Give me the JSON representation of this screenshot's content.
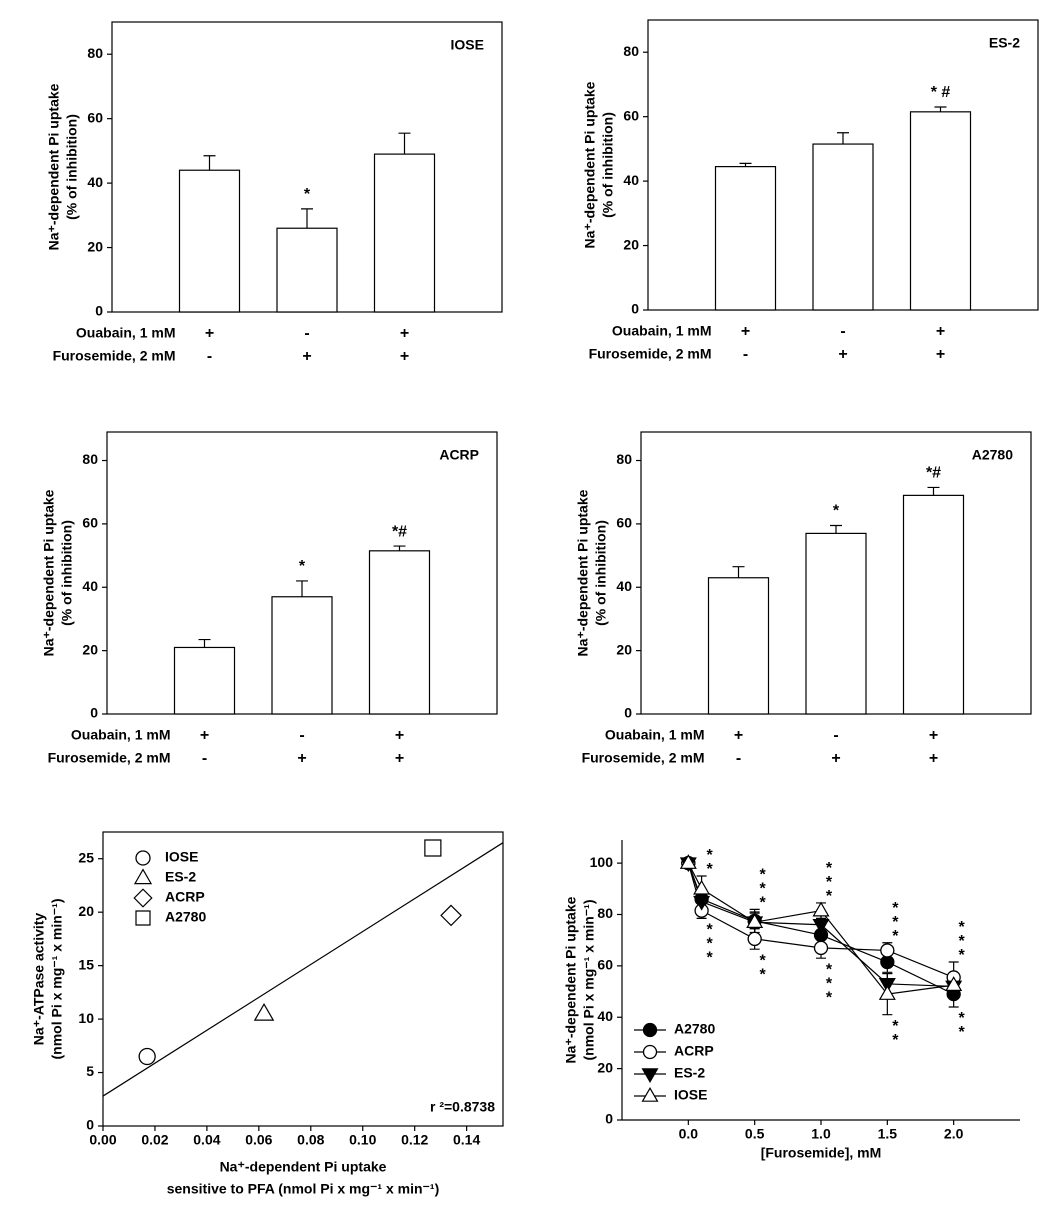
{
  "chart_data": [
    {
      "type": "bar",
      "title": "IOSE",
      "ylabel": [
        "Na⁺-dependent Pi uptake",
        "(% of inhibition)"
      ],
      "values": [
        44,
        26,
        49
      ],
      "errors": [
        4.5,
        6,
        6.5
      ],
      "ylim": [
        0,
        90
      ],
      "yticks": [
        0,
        20,
        40,
        60,
        80
      ],
      "color": "#ffffff",
      "treatments": [
        {
          "name": "Ouabain, 1 mM",
          "labels": [
            "+",
            "-",
            "+"
          ]
        },
        {
          "name": "Furosemide, 2 mM",
          "labels": [
            "-",
            "+",
            "+"
          ]
        }
      ],
      "annotations": [
        {
          "index": 1,
          "text": "*"
        }
      ]
    },
    {
      "type": "bar",
      "title": "ES-2",
      "ylabel": [
        "Na⁺-dependent Pi uptake",
        "(% of inhibition)"
      ],
      "values": [
        44.5,
        51.5,
        61.5
      ],
      "errors": [
        1,
        3.5,
        1.5
      ],
      "ylim": [
        0,
        90
      ],
      "yticks": [
        0,
        20,
        40,
        60,
        80
      ],
      "color": "#ffffff",
      "treatments": [
        {
          "name": "Ouabain, 1 mM",
          "labels": [
            "+",
            "-",
            "+"
          ]
        },
        {
          "name": "Furosemide, 2 mM",
          "labels": [
            "-",
            "+",
            "+"
          ]
        }
      ],
      "annotations": [
        {
          "index": 2,
          "text": "* #"
        }
      ]
    },
    {
      "type": "bar",
      "title": "ACRP",
      "ylabel": [
        "Na⁺-dependent Pi uptake",
        "(% of inhibition)"
      ],
      "values": [
        21,
        37,
        51.5
      ],
      "errors": [
        2.5,
        5,
        1.5
      ],
      "ylim": [
        0,
        89
      ],
      "yticks": [
        0,
        20,
        40,
        60,
        80
      ],
      "color": "#ffffff",
      "treatments": [
        {
          "name": "Ouabain, 1 mM",
          "labels": [
            "+",
            "-",
            "+"
          ]
        },
        {
          "name": "Furosemide, 2 mM",
          "labels": [
            "-",
            "+",
            "+"
          ]
        }
      ],
      "annotations": [
        {
          "index": 1,
          "text": "*"
        },
        {
          "index": 2,
          "text": "*#"
        }
      ]
    },
    {
      "type": "bar",
      "title": "A2780",
      "ylabel": [
        "Na⁺-dependent Pi uptake",
        "(% of inhibition)"
      ],
      "values": [
        43,
        57,
        69
      ],
      "errors": [
        3.5,
        2.5,
        2.5
      ],
      "ylim": [
        0,
        89
      ],
      "yticks": [
        0,
        20,
        40,
        60,
        80
      ],
      "color": "#ffffff",
      "treatments": [
        {
          "name": "Ouabain, 1 mM",
          "labels": [
            "+",
            "-",
            "+"
          ]
        },
        {
          "name": "Furosemide, 2 mM",
          "labels": [
            "-",
            "+",
            "+"
          ]
        }
      ],
      "annotations": [
        {
          "index": 1,
          "text": "*"
        },
        {
          "index": 2,
          "text": "*#"
        }
      ]
    },
    {
      "type": "scatter",
      "ylabel": [
        "Na⁺-ATPase activity",
        "(nmol Pi x mg⁻¹ x min⁻¹)"
      ],
      "xlabel": [
        "Na⁺-dependent Pi uptake",
        "sensitive to PFA (nmol Pi x mg⁻¹ x min⁻¹)"
      ],
      "xlim": [
        0,
        0.154
      ],
      "ylim": [
        0,
        27.5
      ],
      "xticks": [
        {
          "value": 0,
          "label": "0.00"
        },
        {
          "value": 0.02,
          "label": "0.02"
        },
        {
          "value": 0.04,
          "label": "0.04"
        },
        {
          "value": 0.06,
          "label": "0.06"
        },
        {
          "value": 0.08,
          "label": "0.08"
        },
        {
          "value": 0.1,
          "label": "0.10"
        },
        {
          "value": 0.12,
          "label": "0.12"
        },
        {
          "value": 0.14,
          "label": "0.14"
        }
      ],
      "yticks": [
        0,
        5,
        10,
        15,
        20,
        25
      ],
      "series": [
        {
          "name": "IOSE",
          "marker": "circle",
          "x": [
            0.017
          ],
          "y": [
            6.5
          ]
        },
        {
          "name": "ES-2",
          "marker": "triangle-up",
          "x": [
            0.062
          ],
          "y": [
            10.5
          ]
        },
        {
          "name": "ACRP",
          "marker": "diamond",
          "x": [
            0.134
          ],
          "y": [
            19.7
          ]
        },
        {
          "name": "A2780",
          "marker": "square",
          "x": [
            0.127
          ],
          "y": [
            26
          ]
        }
      ],
      "fit": {
        "x": [
          0,
          0.154
        ],
        "y": [
          2.8,
          26.5
        ]
      },
      "annotation": "r ²=0.8738",
      "legend": "upper left"
    },
    {
      "type": "line",
      "ylabel": [
        "Na⁺-dependent Pi uptake",
        "(nmol Pi x mg⁻¹ x min⁻¹)"
      ],
      "xlabel": "[Furosemide], mM",
      "x": [
        0,
        0.1,
        0.5,
        1,
        1.5,
        2
      ],
      "xlim": [
        -0.5,
        2.5
      ],
      "ylim": [
        0,
        109
      ],
      "xticks": [
        {
          "value": 0,
          "label": "0.0"
        },
        {
          "value": 0.5,
          "label": "0.5"
        },
        {
          "value": 1,
          "label": "1.0"
        },
        {
          "value": 1.5,
          "label": "1.5"
        },
        {
          "value": 2,
          "label": "2.0"
        }
      ],
      "yticks": [
        0,
        20,
        40,
        60,
        80,
        100
      ],
      "series": [
        {
          "name": "A2780",
          "marker": "circle",
          "filled": true,
          "values": [
            100,
            86,
            77.5,
            72,
            61.5,
            49
          ],
          "errors": [
            null,
            3,
            3,
            4,
            4,
            5
          ]
        },
        {
          "name": "ACRP",
          "marker": "circle",
          "filled": false,
          "values": [
            100,
            81.5,
            70.5,
            67,
            66,
            55.5
          ],
          "errors": [
            null,
            3,
            4,
            4,
            3,
            6
          ]
        },
        {
          "name": "ES-2",
          "marker": "triangle-down",
          "filled": true,
          "values": [
            100,
            85,
            77,
            76,
            53,
            52
          ],
          "errors": [
            null,
            3,
            4,
            4,
            4,
            4
          ]
        },
        {
          "name": "IOSE",
          "marker": "triangle-up",
          "filled": false,
          "values": [
            100,
            90,
            77,
            81.5,
            49,
            52.5
          ],
          "errors": [
            null,
            5,
            5,
            3,
            8,
            3
          ]
        }
      ],
      "star_groups": [
        {
          "x": 0.1,
          "above": [
            "*",
            "*"
          ],
          "below": [
            "*",
            "*",
            "*"
          ]
        },
        {
          "x": 0.5,
          "above": [
            "*",
            "*",
            "*"
          ],
          "below": [
            "*",
            "*"
          ]
        },
        {
          "x": 1,
          "above": [
            "*",
            "*",
            "*"
          ],
          "below": [
            "*",
            "*",
            "*"
          ]
        },
        {
          "x": 1.5,
          "above": [
            "*",
            "*",
            "*"
          ],
          "below": [
            "*",
            "*"
          ]
        },
        {
          "x": 2,
          "above": [
            "*",
            "*",
            "*"
          ],
          "below": [
            "*",
            "*"
          ]
        }
      ],
      "legend": "lower left"
    }
  ]
}
